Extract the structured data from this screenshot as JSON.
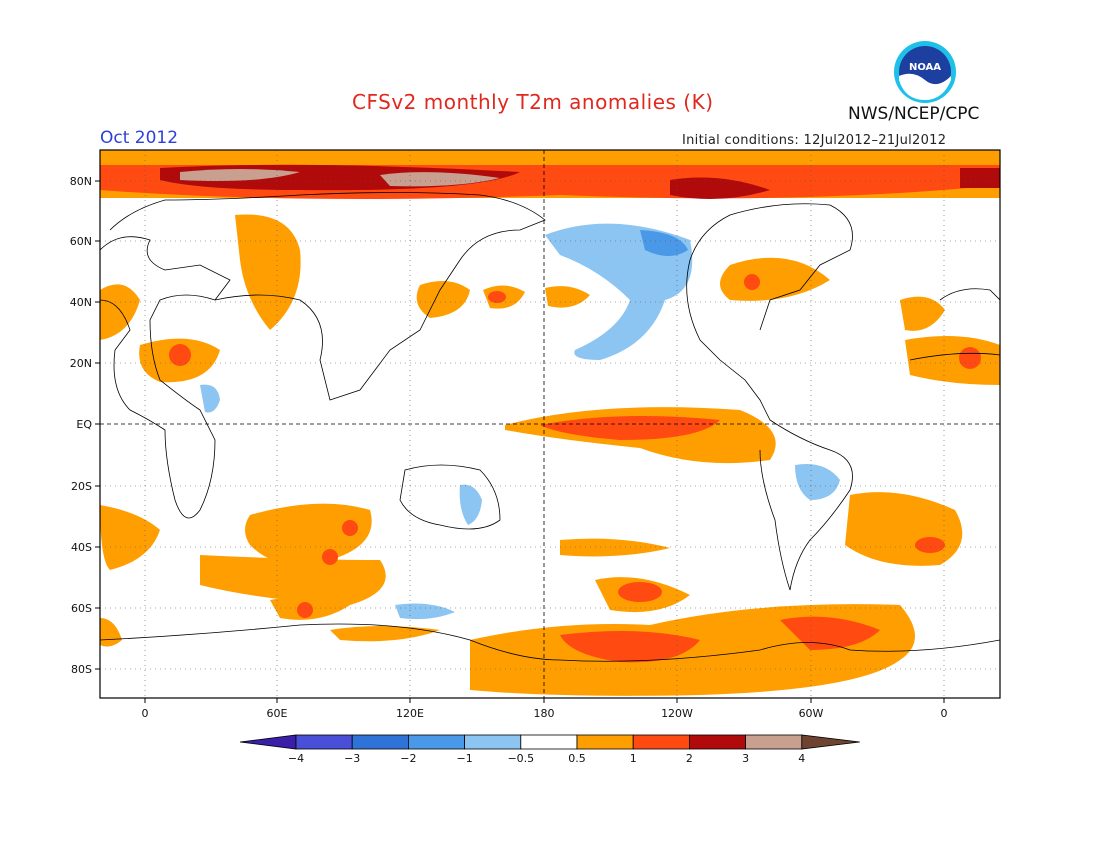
{
  "header": {
    "title": "CFSv2 monthly T2m anomalies (K)",
    "month": "Oct 2012",
    "initial_conditions": "Initial conditions: 12Jul2012–21Jul2012",
    "agency": "NWS/NCEP/CPC",
    "logo_text": "NOAA"
  },
  "axes": {
    "lat_labels": [
      "80N",
      "60N",
      "40N",
      "20N",
      "EQ",
      "20S",
      "40S",
      "60S",
      "80S"
    ],
    "lon_labels": [
      "0",
      "60E",
      "120E",
      "180",
      "120W",
      "60W",
      "0"
    ]
  },
  "colorbar": {
    "labels": [
      "−4",
      "−3",
      "−2",
      "−1",
      "−0.5",
      "0.5",
      "1",
      "2",
      "3",
      "4"
    ],
    "colors": [
      "#3a1fa8",
      "#4a4fd8",
      "#2f73d8",
      "#4a98e8",
      "#8cc4f2",
      "#ffffff",
      "#ff9e00",
      "#ff4a12",
      "#b00a0a",
      "#c99f8f",
      "#6e4430"
    ]
  }
}
